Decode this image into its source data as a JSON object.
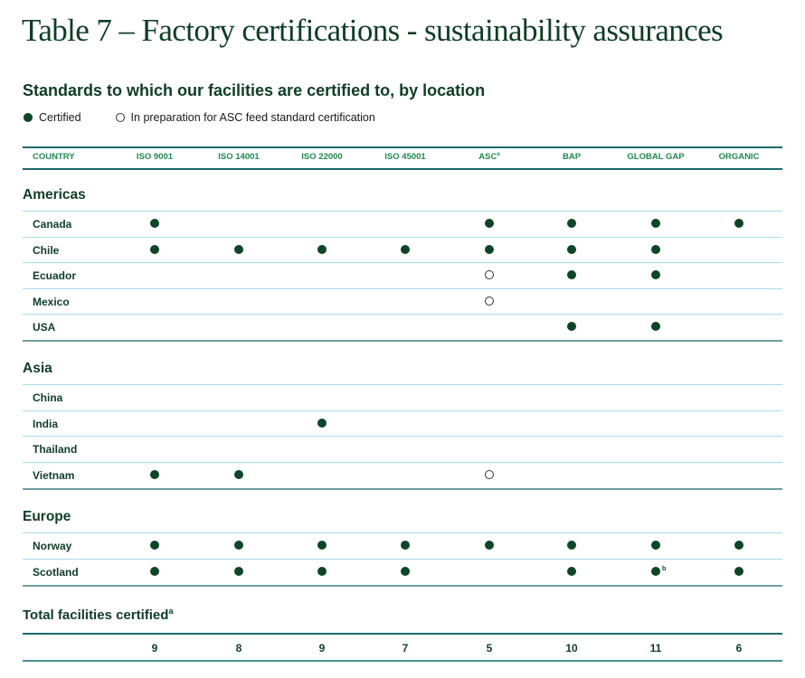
{
  "title": "Table 7 – Factory certifications - sustainability assurances",
  "subtitle": "Standards to which our facilities are certified to, by location",
  "legend": [
    {
      "symbol": "filled-circle-icon",
      "label": "Certified"
    },
    {
      "symbol": "open-circle-icon",
      "label": "In preparation for ASC feed standard certification"
    }
  ],
  "colors": {
    "primary": "#0f3d26",
    "header_text": "#1f8a50",
    "rule_dark": "#1c6b6b",
    "rule_light": "#a8dbe8",
    "dot": "#0d4527"
  },
  "columns": [
    {
      "label": "COUNTRY",
      "sup": ""
    },
    {
      "label": "ISO 9001",
      "sup": ""
    },
    {
      "label": "ISO 14001",
      "sup": ""
    },
    {
      "label": "ISO 22000",
      "sup": ""
    },
    {
      "label": "ISO 45001",
      "sup": ""
    },
    {
      "label": "ASC",
      "sup": "a"
    },
    {
      "label": "BAP",
      "sup": ""
    },
    {
      "label": "GLOBAL GAP",
      "sup": ""
    },
    {
      "label": "ORGANIC",
      "sup": ""
    }
  ],
  "regions": [
    {
      "name": "Americas",
      "rows": [
        {
          "country": "Canada",
          "marks": [
            "certified",
            "",
            "",
            "",
            "certified",
            "certified",
            "certified",
            "certified"
          ]
        },
        {
          "country": "Chile",
          "marks": [
            "certified",
            "certified",
            "certified",
            "certified",
            "certified",
            "certified",
            "certified",
            ""
          ]
        },
        {
          "country": "Ecuador",
          "marks": [
            "",
            "",
            "",
            "",
            "in-preparation",
            "certified",
            "certified",
            ""
          ]
        },
        {
          "country": "Mexico",
          "marks": [
            "",
            "",
            "",
            "",
            "in-preparation",
            "",
            "",
            ""
          ]
        },
        {
          "country": "USA",
          "marks": [
            "",
            "",
            "",
            "",
            "",
            "certified",
            "certified",
            ""
          ]
        }
      ]
    },
    {
      "name": "Asia",
      "rows": [
        {
          "country": "China",
          "marks": [
            "",
            "",
            "",
            "",
            "",
            "",
            "",
            ""
          ]
        },
        {
          "country": "India",
          "marks": [
            "",
            "",
            "certified",
            "",
            "",
            "",
            "",
            ""
          ]
        },
        {
          "country": "Thailand",
          "marks": [
            "",
            "",
            "",
            "",
            "",
            "",
            "",
            ""
          ]
        },
        {
          "country": "Vietnam",
          "marks": [
            "certified",
            "certified",
            "",
            "",
            "in-preparation",
            "",
            "",
            ""
          ]
        }
      ]
    },
    {
      "name": "Europe",
      "rows": [
        {
          "country": "Norway",
          "marks": [
            "certified",
            "certified",
            "certified",
            "certified",
            "certified",
            "certified",
            "certified",
            "certified"
          ]
        },
        {
          "country": "Scotland",
          "marks": [
            "certified",
            "certified",
            "certified",
            "certified",
            "",
            "certified",
            "certified",
            "certified"
          ],
          "footnotes": {
            "6": "b"
          }
        }
      ]
    }
  ],
  "totals": {
    "label": "Total facilities certified",
    "label_sup": "a",
    "values": [
      "9",
      "8",
      "9",
      "7",
      "5",
      "10",
      "11",
      "6"
    ]
  }
}
